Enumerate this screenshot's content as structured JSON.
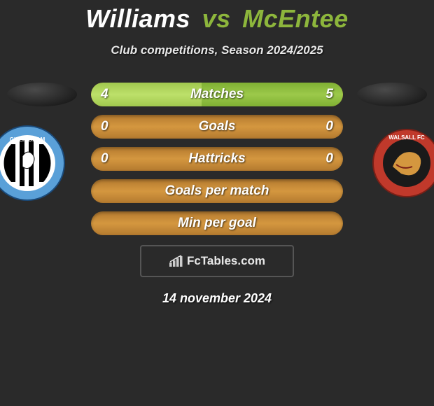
{
  "title": {
    "player1": "Williams",
    "vs": "vs",
    "player2": "McEntee",
    "color_p1": "#ffffff",
    "color_vs": "#8db63c",
    "color_p2": "#8db63c",
    "fontsize": 36
  },
  "subtitle": "Club competitions, Season 2024/2025",
  "stats": [
    {
      "label": "Matches",
      "left_val": "4",
      "right_val": "5",
      "left_pct": 44,
      "right_pct": 56
    },
    {
      "label": "Goals",
      "left_val": "0",
      "right_val": "0",
      "left_pct": 0,
      "right_pct": 0
    },
    {
      "label": "Hattricks",
      "left_val": "0",
      "right_val": "0",
      "left_pct": 0,
      "right_pct": 0
    },
    {
      "label": "Goals per match",
      "left_val": "",
      "right_val": "",
      "left_pct": 0,
      "right_pct": 0
    },
    {
      "label": "Min per goal",
      "left_val": "",
      "right_val": "",
      "left_pct": 0,
      "right_pct": 0
    }
  ],
  "bar_style": {
    "height": 34,
    "radius": 17,
    "base_gradient": [
      "#b47a2f",
      "#d4973f"
    ],
    "left_fill_gradient": [
      "#a0c84e",
      "#bde06a"
    ],
    "right_fill_gradient": [
      "#7fb033",
      "#9cc94a"
    ],
    "label_color": "#ffffff",
    "label_fontsize": 19
  },
  "crests": {
    "left": {
      "name": "gillingham-crest",
      "ring_color": "#5aa0d8",
      "inner_bg": "#ffffff",
      "stripes": "#000000"
    },
    "right": {
      "name": "walsall-crest",
      "ring_color": "#c0392b",
      "inner_bg": "#1a1a1a",
      "accent": "#d4973f"
    }
  },
  "watermark": {
    "icon": "chart-icon",
    "text": "FcTables.com"
  },
  "date": "14 november 2024",
  "background_color": "#2a2a2a"
}
